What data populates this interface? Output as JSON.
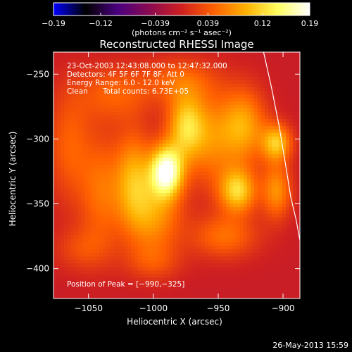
{
  "chart_data": {
    "type": "heatmap",
    "title": "Reconstructed RHESSI Image",
    "xlabel": "Heliocentric X (arcsec)",
    "ylabel": "Heliocentric Y (arcsec)",
    "xlim": [
      -1077,
      -887
    ],
    "ylim": [
      -423,
      -233
    ],
    "x_ticks": [
      -1050,
      -1000,
      -950,
      -900
    ],
    "y_ticks": [
      -250,
      -300,
      -350,
      -400
    ],
    "x_tick_labels": [
      "−1050",
      "−1000",
      "−950",
      "−900"
    ],
    "y_tick_labels": [
      "−250",
      "−300",
      "−350",
      "−400"
    ],
    "colorbar": {
      "min": -0.19,
      "max": 0.19,
      "tick_values": [
        -0.19,
        -0.12,
        -0.039,
        0.039,
        0.12,
        0.19
      ],
      "tick_labels": [
        "−0.19",
        "−0.12",
        "−0.039",
        "0.039",
        "0.12",
        "0.19"
      ],
      "unit_label": "(photons cm⁻² s⁻¹ asec⁻²)",
      "colormap": [
        "#0000ff",
        "#000000",
        "#4a0080",
        "#8b0a50",
        "#d02020",
        "#ff6000",
        "#ffb000",
        "#ffff60",
        "#ffffff"
      ]
    },
    "peaks": [
      {
        "x": -990,
        "y": -325,
        "amplitude": 0.19,
        "sx": 9,
        "sy": 14
      },
      {
        "x": -975,
        "y": -290,
        "amplitude": 0.11,
        "sx": 10,
        "sy": 18
      },
      {
        "x": -955,
        "y": -300,
        "amplitude": 0.07,
        "sx": 14,
        "sy": 25
      },
      {
        "x": -1015,
        "y": -330,
        "amplitude": 0.09,
        "sx": 10,
        "sy": 25
      },
      {
        "x": -1040,
        "y": -340,
        "amplitude": 0.06,
        "sx": 12,
        "sy": 30
      },
      {
        "x": -1065,
        "y": -305,
        "amplitude": 0.05,
        "sx": 12,
        "sy": 30
      },
      {
        "x": -1000,
        "y": -360,
        "amplitude": 0.08,
        "sx": 15,
        "sy": 20
      },
      {
        "x": -935,
        "y": -340,
        "amplitude": 0.12,
        "sx": 10,
        "sy": 12
      },
      {
        "x": -930,
        "y": -290,
        "amplitude": 0.09,
        "sx": 12,
        "sy": 20
      },
      {
        "x": -905,
        "y": -303,
        "amplitude": 0.11,
        "sx": 8,
        "sy": 10
      },
      {
        "x": -905,
        "y": -340,
        "amplitude": 0.08,
        "sx": 8,
        "sy": 15
      },
      {
        "x": -945,
        "y": -375,
        "amplitude": 0.06,
        "sx": 18,
        "sy": 12
      },
      {
        "x": -1030,
        "y": -265,
        "amplitude": 0.05,
        "sx": 20,
        "sy": 15
      },
      {
        "x": -980,
        "y": -255,
        "amplitude": 0.05,
        "sx": 20,
        "sy": 12
      },
      {
        "x": -1055,
        "y": -385,
        "amplitude": 0.035,
        "sx": 15,
        "sy": 12
      },
      {
        "x": -1000,
        "y": -395,
        "amplitude": 0.035,
        "sx": 15,
        "sy": 10
      }
    ],
    "background": -0.005,
    "limb_curve": [
      {
        "x": -915,
        "y": -233
      },
      {
        "x": -909,
        "y": -260
      },
      {
        "x": -903,
        "y": -290
      },
      {
        "x": -898,
        "y": -320
      },
      {
        "x": -894,
        "y": -345
      },
      {
        "x": -890,
        "y": -362
      },
      {
        "x": -887,
        "y": -378
      }
    ]
  },
  "annotations": {
    "time_range": "23-Oct-2003 12:43:08.000 to 12:47:32.000",
    "detectors": "Detectors: 4F 5F 6F 7F 8F, Att 0",
    "energy_range": "Energy Range: 6.0 - 12.0 keV",
    "clean_label": "Clean",
    "total_counts": "Total counts: 6.73E+05",
    "peak_position": "Position of Peak = [−990,−325]",
    "footer_date": "26-May-2013 15:59"
  }
}
